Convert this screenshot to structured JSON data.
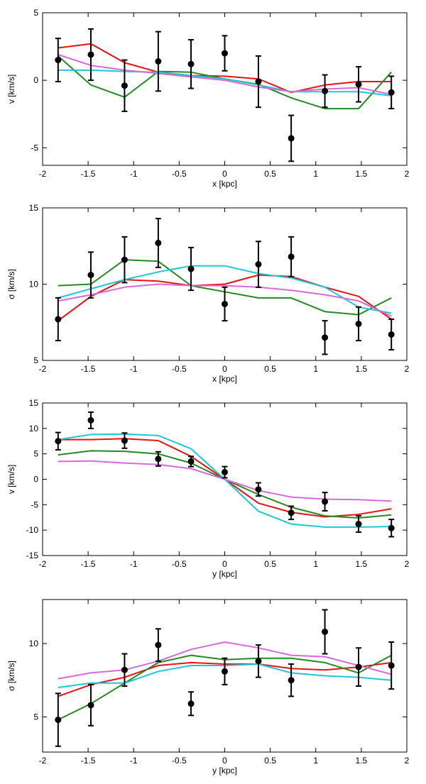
{
  "colors": {
    "red": "#ee1111",
    "green": "#228b22",
    "cyan": "#1ec8d2",
    "violet": "#d86ad8",
    "observed": "#000000"
  },
  "chart_data": [
    {
      "type": "line",
      "xlabel": "x [kpc]",
      "ylabel": "v [km/s]",
      "xlim": [
        -2,
        2
      ],
      "ylim": [
        -6.3,
        5
      ],
      "xticks": [
        -2,
        -1.5,
        -1,
        -0.5,
        0,
        0.5,
        1,
        1.5,
        2
      ],
      "xtick_labels": [
        "-2",
        "-1.5",
        "-1",
        "-0.5",
        "0",
        "0.5",
        "1",
        "1.5",
        "2"
      ],
      "yticks": [
        -5,
        0,
        5
      ],
      "ytick_labels": [
        "-5",
        "0",
        "5"
      ],
      "grid": false,
      "x": [
        -1.83,
        -1.47,
        -1.1,
        -0.73,
        -0.37,
        0,
        0.37,
        0.73,
        1.1,
        1.47,
        1.83
      ],
      "series": [
        {
          "color": "red",
          "values": [
            2.4,
            2.7,
            1.3,
            0.6,
            0.35,
            0.3,
            0.1,
            -0.9,
            -0.35,
            -0.1,
            -0.1
          ]
        },
        {
          "color": "green",
          "values": [
            1.8,
            -0.35,
            -1.25,
            0.65,
            0.6,
            0.1,
            -0.3,
            -1.3,
            -2.1,
            -2.1,
            0.6
          ]
        },
        {
          "color": "cyan",
          "values": [
            0.75,
            0.75,
            0.65,
            0.6,
            0.35,
            0.1,
            -0.35,
            -0.85,
            -0.85,
            -0.85,
            -1.15
          ]
        },
        {
          "color": "violet",
          "values": [
            1.9,
            1.1,
            0.75,
            0.5,
            0.25,
            0.0,
            -0.5,
            -0.85,
            -0.65,
            -0.55,
            -1.05
          ]
        }
      ],
      "observed": [
        {
          "x": -1.83,
          "y": 1.5,
          "err": 1.6
        },
        {
          "x": -1.47,
          "y": 1.9,
          "err": 1.9
        },
        {
          "x": -1.1,
          "y": -0.4,
          "err": 1.9
        },
        {
          "x": -0.73,
          "y": 1.4,
          "err": 2.2
        },
        {
          "x": -0.37,
          "y": 1.2,
          "err": 1.8
        },
        {
          "x": 0,
          "y": 2.0,
          "err": 1.3
        },
        {
          "x": 0.37,
          "y": -0.1,
          "err": 1.9
        },
        {
          "x": 0.73,
          "y": -4.3,
          "err": 1.7
        },
        {
          "x": 1.1,
          "y": -0.8,
          "err": 1.2
        },
        {
          "x": 1.47,
          "y": -0.3,
          "err": 1.3
        },
        {
          "x": 1.83,
          "y": -0.9,
          "err": 1.2
        }
      ]
    },
    {
      "type": "line",
      "xlabel": "x [kpc]",
      "ylabel": "σ [km/s]",
      "xlim": [
        -2,
        2
      ],
      "ylim": [
        5,
        15
      ],
      "xticks": [
        -2,
        -1.5,
        -1,
        -0.5,
        0,
        0.5,
        1,
        1.5,
        2
      ],
      "xtick_labels": [
        "-2",
        "-1.5",
        "-1",
        "-0.5",
        "0",
        "0.5",
        "1",
        "1.5",
        "2"
      ],
      "yticks": [
        5,
        10,
        15
      ],
      "ytick_labels": [
        "5",
        "10",
        "15"
      ],
      "grid": false,
      "x": [
        -1.83,
        -1.47,
        -1.1,
        -0.73,
        -0.37,
        0,
        0.37,
        0.73,
        1.1,
        1.47,
        1.83
      ],
      "series": [
        {
          "color": "red",
          "values": [
            7.6,
            9.2,
            10.3,
            10.2,
            9.9,
            10.0,
            10.6,
            10.5,
            9.8,
            9.2,
            7.7
          ]
        },
        {
          "color": "green",
          "values": [
            9.9,
            10.0,
            11.6,
            11.5,
            9.9,
            9.5,
            9.1,
            9.1,
            8.2,
            8.0,
            9.1
          ]
        },
        {
          "color": "cyan",
          "values": [
            9.1,
            9.7,
            10.3,
            10.8,
            11.2,
            11.2,
            10.7,
            10.4,
            9.8,
            8.5,
            8.1
          ]
        },
        {
          "color": "violet",
          "values": [
            8.9,
            9.3,
            9.8,
            10.0,
            9.9,
            9.9,
            9.8,
            9.6,
            9.3,
            8.9,
            7.9
          ]
        }
      ],
      "observed": [
        {
          "x": -1.83,
          "y": 7.7,
          "err": 1.4
        },
        {
          "x": -1.47,
          "y": 10.6,
          "err": 1.5
        },
        {
          "x": -1.1,
          "y": 11.6,
          "err": 1.5
        },
        {
          "x": -0.73,
          "y": 12.7,
          "err": 1.6
        },
        {
          "x": -0.37,
          "y": 11.0,
          "err": 1.4
        },
        {
          "x": 0,
          "y": 8.7,
          "err": 1.1
        },
        {
          "x": 0.37,
          "y": 11.3,
          "err": 1.5
        },
        {
          "x": 0.73,
          "y": 11.8,
          "err": 1.3
        },
        {
          "x": 1.1,
          "y": 6.5,
          "err": 1.1
        },
        {
          "x": 1.47,
          "y": 7.4,
          "err": 1.1
        },
        {
          "x": 1.83,
          "y": 6.7,
          "err": 1.0
        }
      ]
    },
    {
      "type": "line",
      "xlabel": "y [kpc]",
      "ylabel": "v [km/s]",
      "xlim": [
        -2,
        2
      ],
      "ylim": [
        -15,
        15
      ],
      "xticks": [
        -2,
        -1.5,
        -1,
        -0.5,
        0,
        0.5,
        1,
        1.5,
        2
      ],
      "xtick_labels": [
        "-2",
        "-1.5",
        "-1",
        "-0.5",
        "0",
        "0.5",
        "1",
        "1.5",
        "2"
      ],
      "yticks": [
        -15,
        -10,
        -5,
        0,
        5,
        10,
        15
      ],
      "ytick_labels": [
        "-15",
        "-10",
        "-5",
        "0",
        "5",
        "10",
        "15"
      ],
      "grid": false,
      "x": [
        -1.83,
        -1.47,
        -1.1,
        -0.73,
        -0.37,
        0,
        0.37,
        0.73,
        1.1,
        1.47,
        1.83
      ],
      "series": [
        {
          "color": "red",
          "values": [
            7.8,
            7.8,
            8.0,
            7.6,
            4.5,
            0.0,
            -4.7,
            -6.5,
            -7.4,
            -6.9,
            -5.8
          ]
        },
        {
          "color": "green",
          "values": [
            4.8,
            5.6,
            5.5,
            5.0,
            3.2,
            0.0,
            -3.0,
            -5.5,
            -7.2,
            -7.6,
            -7.0
          ]
        },
        {
          "color": "cyan",
          "values": [
            7.8,
            8.8,
            8.9,
            8.6,
            6.0,
            0.0,
            -6.3,
            -8.8,
            -9.4,
            -9.4,
            -9.3
          ]
        },
        {
          "color": "violet",
          "values": [
            3.5,
            3.6,
            3.2,
            2.9,
            2.1,
            0.0,
            -2.2,
            -3.5,
            -3.9,
            -4.0,
            -4.3
          ]
        }
      ],
      "observed": [
        {
          "x": -1.83,
          "y": 7.5,
          "err": 1.7
        },
        {
          "x": -1.47,
          "y": 11.6,
          "err": 1.6
        },
        {
          "x": -1.1,
          "y": 7.6,
          "err": 1.5
        },
        {
          "x": -0.73,
          "y": 4.0,
          "err": 1.4
        },
        {
          "x": -0.37,
          "y": 3.5,
          "err": 1.0
        },
        {
          "x": 0,
          "y": 1.4,
          "err": 1.1
        },
        {
          "x": 0.37,
          "y": -2.0,
          "err": 1.3
        },
        {
          "x": 0.73,
          "y": -6.6,
          "err": 1.3
        },
        {
          "x": 1.1,
          "y": -4.4,
          "err": 1.8
        },
        {
          "x": 1.47,
          "y": -8.8,
          "err": 1.6
        },
        {
          "x": 1.83,
          "y": -9.6,
          "err": 1.7
        }
      ]
    },
    {
      "type": "line",
      "xlabel": "y [kpc]",
      "ylabel": "σ [km/s]",
      "xlim": [
        -2,
        2
      ],
      "ylim": [
        2.6,
        13
      ],
      "xticks": [
        -2,
        -1.5,
        -1,
        -0.5,
        0,
        0.5,
        1,
        1.5,
        2
      ],
      "xtick_labels": [
        "-2",
        "-1.5",
        "-1",
        "-0.5",
        "0",
        "0.5",
        "1",
        "1.5",
        "2"
      ],
      "yticks": [
        5,
        10
      ],
      "ytick_labels": [
        "5",
        "10"
      ],
      "grid": false,
      "x": [
        -1.83,
        -1.47,
        -1.1,
        -0.73,
        -0.37,
        0,
        0.37,
        0.73,
        1.1,
        1.47,
        1.83
      ],
      "series": [
        {
          "color": "red",
          "values": [
            6.4,
            7.2,
            7.7,
            8.5,
            8.7,
            8.6,
            8.6,
            8.3,
            8.2,
            8.4,
            8.7
          ]
        },
        {
          "color": "green",
          "values": [
            4.8,
            5.9,
            7.3,
            8.7,
            9.2,
            8.9,
            9.0,
            9.0,
            8.7,
            8.0,
            9.2
          ]
        },
        {
          "color": "cyan",
          "values": [
            7.0,
            7.3,
            7.3,
            8.1,
            8.5,
            8.5,
            8.6,
            8.0,
            7.8,
            7.7,
            7.5
          ]
        },
        {
          "color": "violet",
          "values": [
            7.6,
            8.0,
            8.2,
            8.8,
            9.6,
            10.1,
            9.7,
            9.2,
            9.1,
            8.5,
            7.9
          ]
        }
      ],
      "observed": [
        {
          "x": -1.83,
          "y": 4.8,
          "err": 1.8
        },
        {
          "x": -1.47,
          "y": 5.8,
          "err": 1.4
        },
        {
          "x": -1.1,
          "y": 8.2,
          "err": 1.1
        },
        {
          "x": -0.73,
          "y": 9.9,
          "err": 1.1
        },
        {
          "x": -0.37,
          "y": 5.9,
          "err": 0.8
        },
        {
          "x": 0,
          "y": 8.1,
          "err": 0.9
        },
        {
          "x": 0.37,
          "y": 8.8,
          "err": 1.1
        },
        {
          "x": 0.73,
          "y": 7.5,
          "err": 1.1
        },
        {
          "x": 1.1,
          "y": 10.8,
          "err": 1.5
        },
        {
          "x": 1.47,
          "y": 8.4,
          "err": 1.3
        },
        {
          "x": 1.83,
          "y": 8.5,
          "err": 1.6
        }
      ]
    }
  ]
}
